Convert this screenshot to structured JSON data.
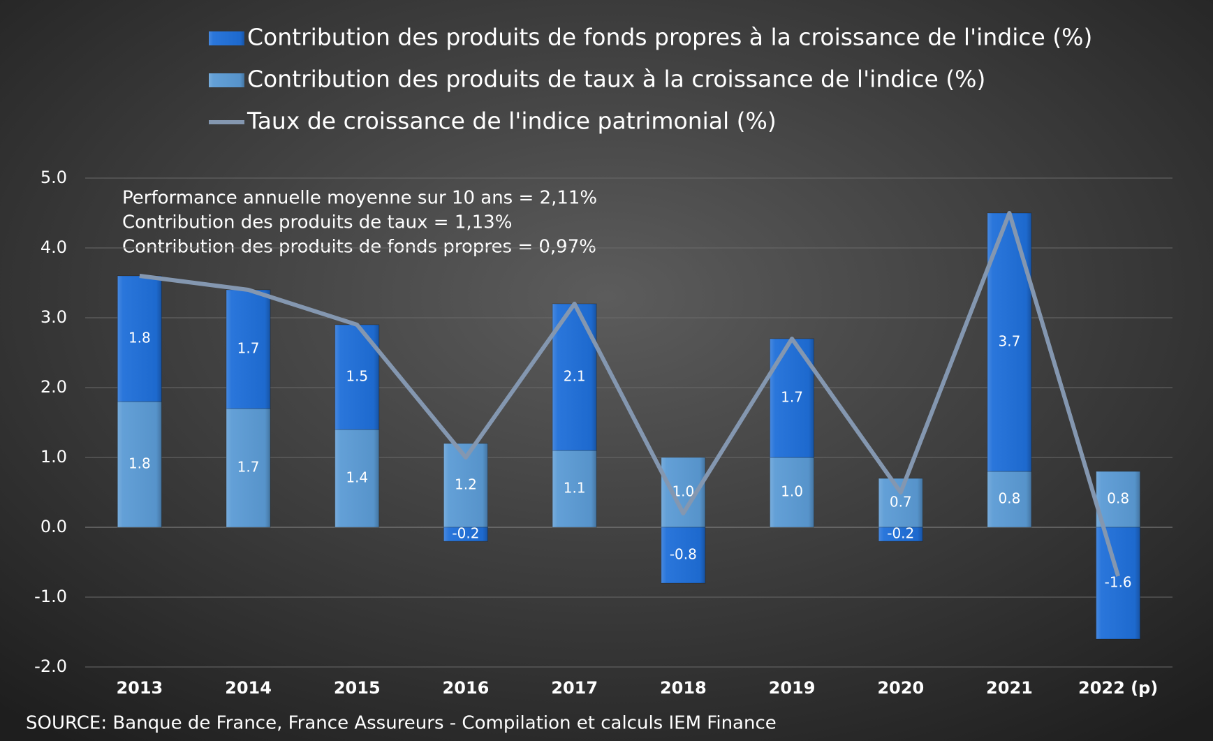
{
  "chart_data": {
    "type": "stacked_bar_line",
    "categories": [
      "2013",
      "2014",
      "2015",
      "2016",
      "2017",
      "2018",
      "2019",
      "2020",
      "2021",
      "2022 (p)"
    ],
    "series": [
      {
        "name": "Contribution des produits de taux à la croissance de l'indice (%)",
        "kind": "bar",
        "color": "#5b9bd5",
        "values": [
          1.8,
          1.7,
          1.4,
          1.2,
          1.1,
          1.0,
          1.0,
          0.7,
          0.8,
          0.8
        ],
        "value_labels": [
          "1.8",
          "1.7",
          "1.4",
          "1.2",
          "1.1",
          "1.0",
          "1.0",
          "0.7",
          "0.8",
          "0.8"
        ]
      },
      {
        "name": "Contribution des produits de fonds propres à la croissance de l'indice (%)",
        "kind": "bar",
        "color": "#1f6fd9",
        "values": [
          1.8,
          1.7,
          1.5,
          -0.2,
          2.1,
          -0.8,
          1.7,
          -0.2,
          3.7,
          -1.6
        ],
        "value_labels": [
          "1.8",
          "1.7",
          "1.5",
          "-0.2",
          "2.1",
          "-0.8",
          "1.7",
          "-0.2",
          "3.7",
          "-1.6"
        ]
      },
      {
        "name": "Taux de croissance de l'indice patrimonial (%)",
        "kind": "line",
        "color": "#8497b0",
        "values": [
          3.6,
          3.4,
          2.9,
          1.0,
          3.2,
          0.2,
          2.7,
          0.5,
          4.5,
          -0.7
        ]
      }
    ],
    "legend_order": [
      1,
      0,
      2
    ],
    "ylim": [
      -2,
      5
    ],
    "yticks": [
      {
        "value": -2,
        "label": "-2.0"
      },
      {
        "value": -1,
        "label": "-1.0"
      },
      {
        "value": 0,
        "label": "0.0"
      },
      {
        "value": 1,
        "label": "1.0"
      },
      {
        "value": 2,
        "label": "2.0"
      },
      {
        "value": 3,
        "label": "3.0"
      },
      {
        "value": 4,
        "label": "4.0"
      },
      {
        "value": 5,
        "label": "5.0"
      }
    ],
    "grid": true,
    "annotations": [
      "Performance annuelle moyenne sur 10 ans = 2,11%",
      "Contribution des produits de taux = 1,13%",
      "Contribution des produits de fonds propres = 0,97%"
    ],
    "source": "SOURCE: Banque de France, France Assureurs - Compilation et calculs IEM Finance"
  }
}
